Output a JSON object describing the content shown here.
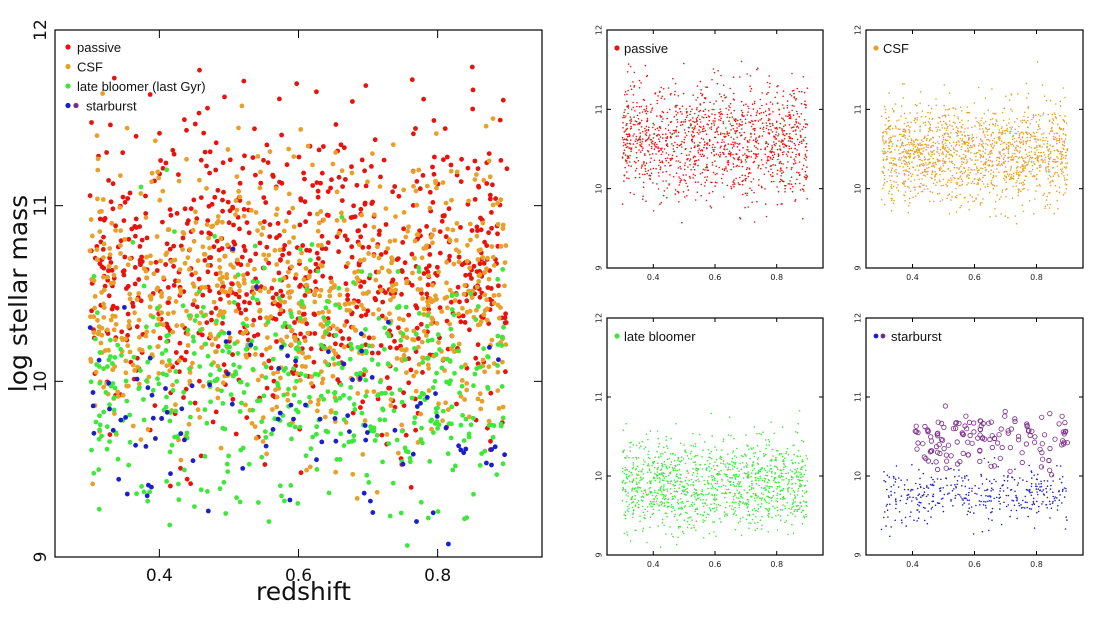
{
  "chart_data": [
    {
      "id": "main",
      "type": "scatter",
      "xlabel": "redshift",
      "ylabel": "log stellar mass",
      "xlim": [
        0.25,
        0.95
      ],
      "ylim": [
        9,
        12
      ],
      "xticks": [
        "0.4",
        "0.6",
        "0.8"
      ],
      "xtick_values": [
        0.4,
        0.6,
        0.8
      ],
      "yticks": [
        "9",
        "10",
        "11",
        "12"
      ],
      "ytick_values": [
        9,
        10,
        11,
        12
      ],
      "legend_position": "top-left",
      "series": [
        {
          "name": "passive",
          "color": "#e8130c",
          "marker": "filled-circle",
          "x_range": [
            0.3,
            0.9
          ],
          "y_center": 10.6,
          "y_spread": 0.45,
          "approx_count": 1500
        },
        {
          "name": "CSF",
          "color": "#e9a02a",
          "marker": "filled-circle",
          "x_range": [
            0.3,
            0.9
          ],
          "y_center": 10.45,
          "y_spread": 0.4,
          "approx_count": 1500
        },
        {
          "name": "late bloomer (last Gyr)",
          "color": "#3ee83a",
          "marker": "filled-circle",
          "x_range": [
            0.3,
            0.9
          ],
          "y_center": 9.95,
          "y_spread": 0.35,
          "approx_count": 900
        },
        {
          "name": "starburst",
          "color": "#1b1fc9",
          "marker": "filled-circle",
          "x_range": [
            0.3,
            0.9
          ],
          "y_center": 9.8,
          "y_spread": 0.3,
          "approx_count": 180
        }
      ],
      "legend": [
        {
          "label": "passive",
          "color": "#e8130c"
        },
        {
          "label": "CSF",
          "color": "#e9a02a"
        },
        {
          "label": "late bloomer (last Gyr)",
          "color": "#3ee83a"
        },
        {
          "label": "starburst",
          "colors": [
            "#1b1fc9",
            "#7a2a8a"
          ]
        }
      ]
    },
    {
      "id": "passive",
      "type": "scatter",
      "title": "passive",
      "color": "#e8130c",
      "xlim": [
        0.25,
        0.95
      ],
      "ylim": [
        9,
        12
      ],
      "xticks": [
        "0.4",
        "0.6",
        "0.8"
      ],
      "yticks": [
        "9",
        "10",
        "11",
        "12"
      ],
      "series": [
        {
          "name": "passive",
          "x_range": [
            0.3,
            0.9
          ],
          "y_center": 10.6,
          "y_spread": 0.35,
          "approx_count": 1400
        }
      ]
    },
    {
      "id": "csf",
      "type": "scatter",
      "title": "CSF",
      "color": "#e9a02a",
      "xlim": [
        0.25,
        0.95
      ],
      "ylim": [
        9,
        12
      ],
      "xticks": [
        "0.4",
        "0.6",
        "0.8"
      ],
      "yticks": [
        "9",
        "10",
        "11",
        "12"
      ],
      "series": [
        {
          "name": "CSF",
          "x_range": [
            0.3,
            0.9
          ],
          "y_center": 10.45,
          "y_spread": 0.3,
          "approx_count": 1600
        }
      ]
    },
    {
      "id": "late",
      "type": "scatter",
      "title": "late bloomer",
      "color": "#3ee83a",
      "xlim": [
        0.25,
        0.95
      ],
      "ylim": [
        9,
        12
      ],
      "xticks": [
        "0.4",
        "0.6",
        "0.8"
      ],
      "yticks": [
        "9",
        "10",
        "11",
        "12"
      ],
      "series": [
        {
          "name": "late bloomer",
          "x_range": [
            0.3,
            0.9
          ],
          "y_center": 9.9,
          "y_spread": 0.28,
          "approx_count": 1300
        }
      ]
    },
    {
      "id": "starburst",
      "type": "scatter",
      "title": "starburst",
      "color": "#1b1fc9",
      "xlim": [
        0.25,
        0.95
      ],
      "ylim": [
        9,
        12
      ],
      "xticks": [
        "0.4",
        "0.6",
        "0.8"
      ],
      "yticks": [
        "9",
        "10",
        "11",
        "12"
      ],
      "series": [
        {
          "name": "starburst",
          "color": "#1b1fc9",
          "marker": "small-dot",
          "x_range": [
            0.3,
            0.9
          ],
          "y_center": 9.75,
          "y_spread": 0.17,
          "approx_count": 400
        },
        {
          "name": "starburst (open)",
          "color": "#7a2a8a",
          "marker": "open-circle",
          "x_range": [
            0.4,
            0.9
          ],
          "y_center": 10.45,
          "y_spread": 0.18,
          "approx_count": 140
        }
      ]
    }
  ]
}
